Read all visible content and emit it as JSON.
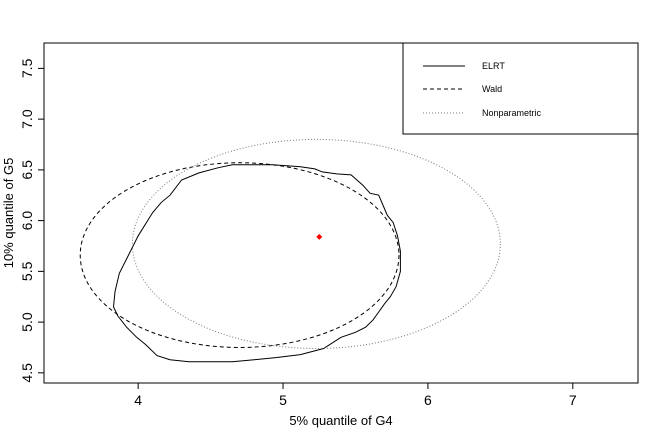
{
  "chart_data": {
    "type": "line",
    "xlabel": "5% quantile of G4",
    "ylabel": "10% quantile of G5",
    "xlim": [
      3.35,
      7.45
    ],
    "ylim": [
      4.4,
      7.75
    ],
    "x_ticks": [
      "4",
      "5",
      "6",
      "7"
    ],
    "y_ticks": [
      "4.5",
      "5.0",
      "5.5",
      "6.0",
      "6.5",
      "7.0",
      "7.5"
    ],
    "grid": false,
    "legend_position": "top-right",
    "point_estimate": {
      "x": 5.25,
      "y": 5.84,
      "color": "#ff0000"
    },
    "series": [
      {
        "name": "ELRT",
        "style": "solid",
        "x": [
          4.65,
          4.93,
          5.12,
          5.22,
          5.27,
          5.37,
          5.47,
          5.55,
          5.6,
          5.66,
          5.72,
          5.76,
          5.79,
          5.81,
          5.81,
          5.78,
          5.74,
          5.7,
          5.66,
          5.62,
          5.57,
          5.5,
          5.4,
          5.28,
          5.12,
          4.95,
          4.8,
          4.65,
          4.5,
          4.35,
          4.22,
          4.13,
          4.05,
          3.99,
          3.92,
          3.86,
          3.83,
          3.84,
          3.87,
          3.93,
          4.0,
          4.1,
          4.16,
          4.22,
          4.3,
          4.42,
          4.55,
          4.65
        ],
        "y": [
          6.55,
          6.55,
          6.53,
          6.51,
          6.48,
          6.46,
          6.45,
          6.35,
          6.27,
          6.25,
          6.05,
          5.98,
          5.85,
          5.7,
          5.5,
          5.35,
          5.25,
          5.18,
          5.1,
          5.02,
          4.95,
          4.9,
          4.85,
          4.74,
          4.68,
          4.65,
          4.63,
          4.61,
          4.61,
          4.61,
          4.63,
          4.67,
          4.78,
          4.85,
          4.95,
          5.06,
          5.15,
          5.3,
          5.48,
          5.65,
          5.85,
          6.08,
          6.18,
          6.25,
          6.4,
          6.47,
          6.52,
          6.55
        ]
      },
      {
        "name": "Wald",
        "style": "dashed",
        "center": [
          4.7,
          5.66
        ],
        "radius": [
          1.1,
          0.91
        ]
      },
      {
        "name": "Nonparametric",
        "style": "dotted",
        "center": [
          5.23,
          5.77
        ],
        "radius": [
          1.27,
          1.03
        ]
      }
    ]
  }
}
